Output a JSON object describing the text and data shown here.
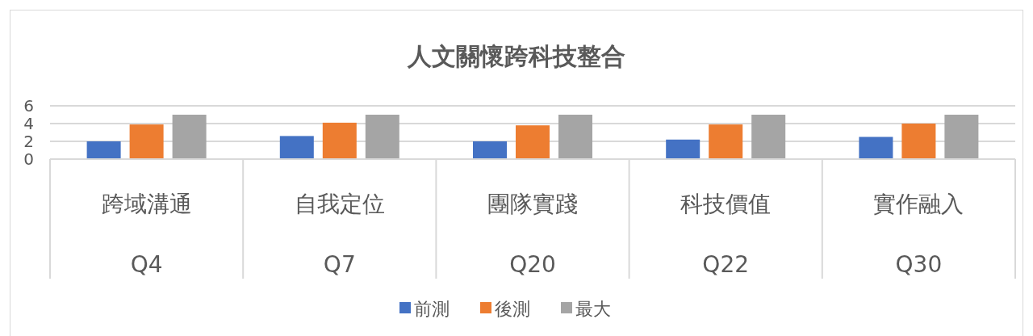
{
  "chart_data": {
    "type": "bar",
    "title": "人文關懷跨科技整合",
    "categories": [
      "跨域溝通\nQ4",
      "自我定位\nQ7",
      "團隊實踐\nQ20",
      "科技價值\nQ22",
      "實作融入\nQ30"
    ],
    "series": [
      {
        "name": "前測",
        "color": "#4472c4",
        "values": [
          2.0,
          2.6,
          2.0,
          2.2,
          2.5
        ]
      },
      {
        "name": "後測",
        "color": "#ed7d31",
        "values": [
          3.9,
          4.1,
          3.8,
          3.9,
          4.0
        ]
      },
      {
        "name": "最大",
        "color": "#a5a5a5",
        "values": [
          5,
          5,
          5,
          5,
          5
        ]
      }
    ],
    "ylim": [
      0,
      6
    ],
    "yticks": [
      0,
      2,
      4,
      6
    ],
    "grid": "y",
    "legend": "bottom"
  }
}
